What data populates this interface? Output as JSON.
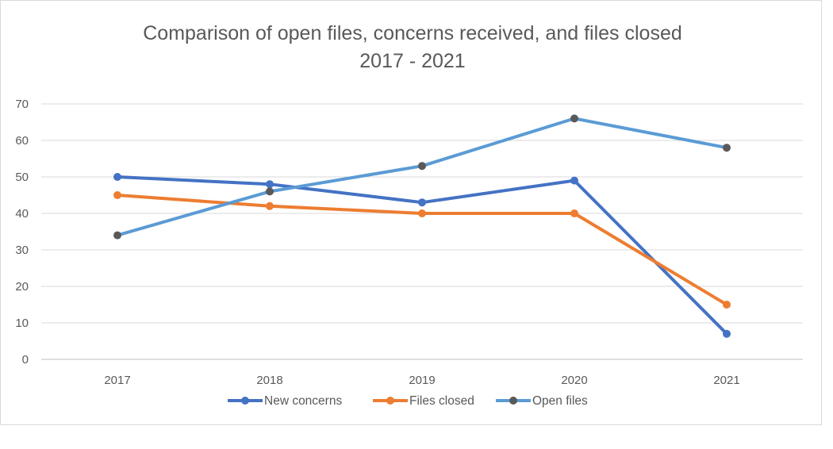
{
  "chart_data": {
    "type": "line",
    "title": [
      "Comparison of open files, concerns received, and files closed",
      "2017 - 2021"
    ],
    "categories": [
      "2017",
      "2018",
      "2019",
      "2020",
      "2021"
    ],
    "ylim": [
      0,
      70
    ],
    "yticks": [
      "0",
      "10",
      "20",
      "30",
      "40",
      "50",
      "60",
      "70"
    ],
    "grid": true,
    "legend_position": "bottom",
    "series": [
      {
        "name": "New concerns",
        "color": "#4472c4",
        "marker_color": "#4472c4",
        "values": [
          50,
          48,
          43,
          49,
          7
        ]
      },
      {
        "name": "Files closed",
        "color": "#ed7d31",
        "marker_color": "#ed7d31",
        "values": [
          45,
          42,
          40,
          40,
          15
        ]
      },
      {
        "name": "Open files",
        "color": "#5b9bd5",
        "marker_color": "#595959",
        "values": [
          34,
          46,
          53,
          66,
          58
        ]
      }
    ]
  }
}
